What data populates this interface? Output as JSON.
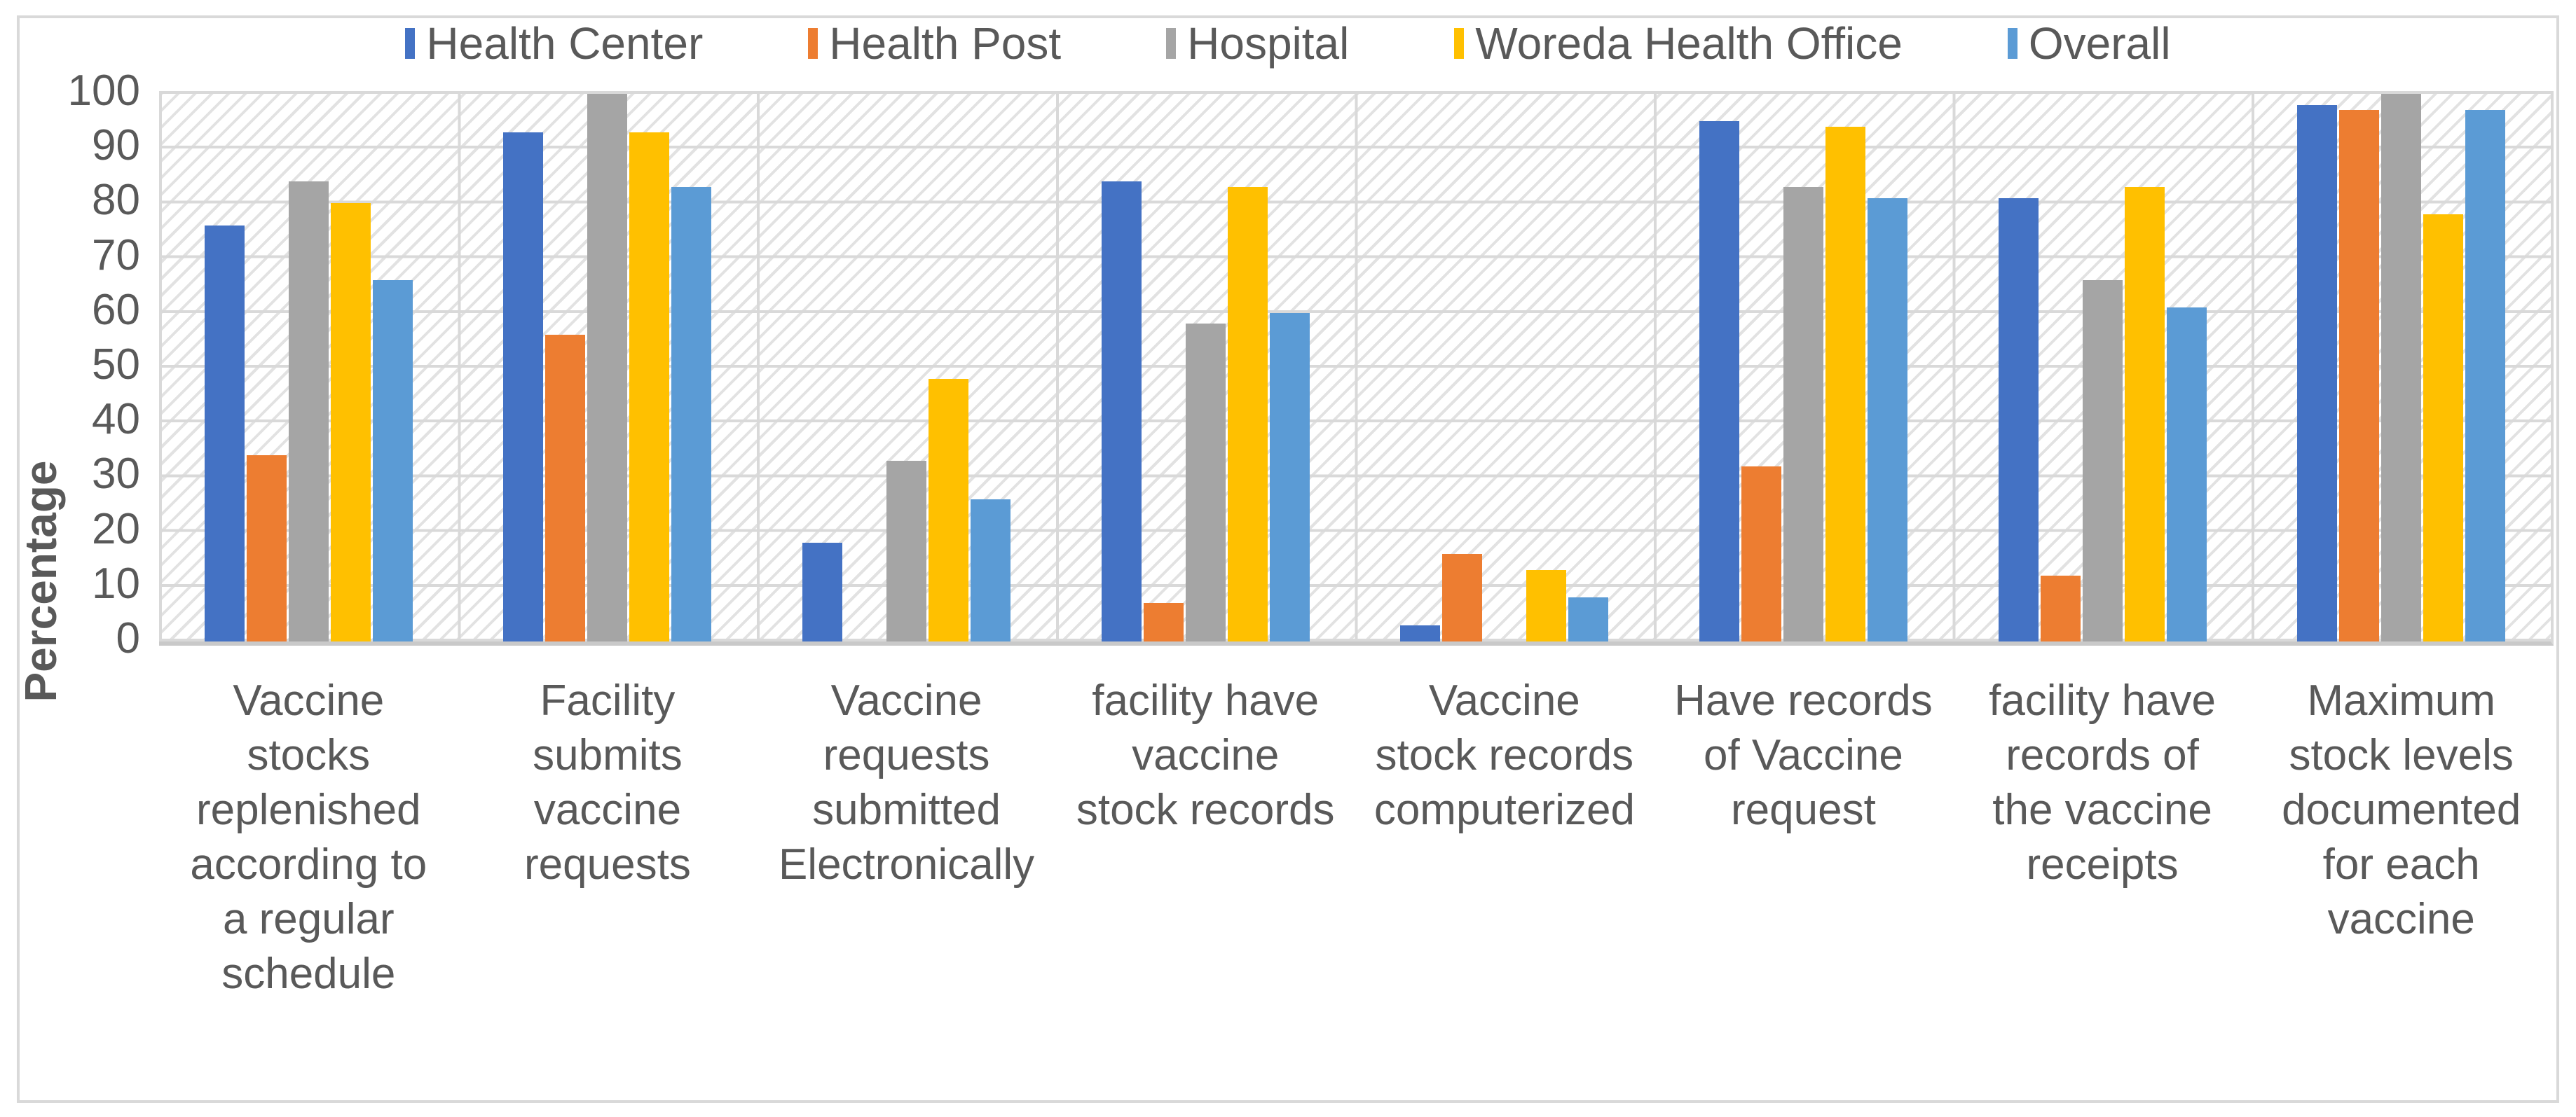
{
  "y_axis": {
    "title": "Percentage",
    "min": 0,
    "max": 100,
    "step": 10,
    "ticks": [
      100,
      90,
      80,
      70,
      60,
      50,
      40,
      30,
      20,
      10,
      0
    ]
  },
  "legend": [
    {
      "label": "Health Center",
      "color": "#4472C4"
    },
    {
      "label": "Health Post",
      "color": "#ED7D31"
    },
    {
      "label": "Hospital",
      "color": "#A5A5A5"
    },
    {
      "label": "Woreda Health Office",
      "color": "#FFC000"
    },
    {
      "label": "Overall",
      "color": "#5B9BD5"
    }
  ],
  "chart_data": {
    "type": "bar",
    "title": "",
    "xlabel": "",
    "ylabel": "Percentage",
    "ylim": [
      0,
      100
    ],
    "grid": true,
    "legend_position": "top",
    "categories": [
      "Vaccine stocks replenished according to a regular schedule",
      "Facility submits vaccine requests",
      "Vaccine requests submitted Electronically",
      "facility have vaccine stock records",
      "Vaccine stock records computerized",
      "Have records of Vaccine request",
      "facility have records of the vaccine receipts",
      "Maximum stock levels documented for each vaccine"
    ],
    "series": [
      {
        "name": "Health Center",
        "color": "#4472C4",
        "values": [
          76,
          93,
          18,
          84,
          3,
          95,
          81,
          98
        ]
      },
      {
        "name": "Health Post",
        "color": "#ED7D31",
        "values": [
          34,
          56,
          0,
          7,
          16,
          32,
          12,
          97
        ]
      },
      {
        "name": "Hospital",
        "color": "#A5A5A5",
        "values": [
          84,
          100,
          33,
          58,
          0,
          83,
          66,
          100
        ]
      },
      {
        "name": "Woreda Health Office",
        "color": "#FFC000",
        "values": [
          80,
          93,
          48,
          83,
          13,
          94,
          83,
          78
        ]
      },
      {
        "name": "Overall",
        "color": "#5B9BD5",
        "values": [
          66,
          83,
          26,
          60,
          8,
          81,
          61,
          97
        ]
      }
    ]
  }
}
